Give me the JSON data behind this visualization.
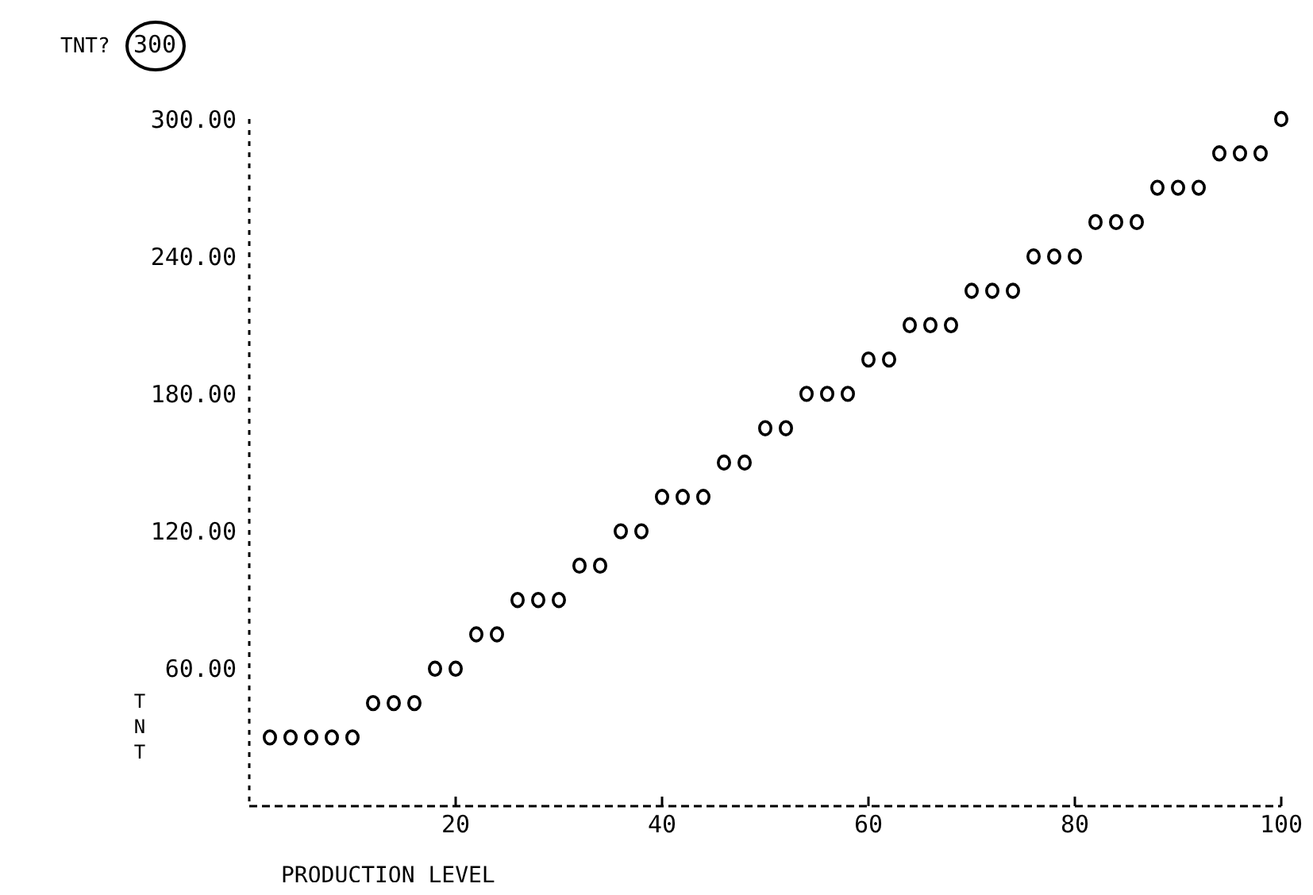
{
  "chart_data": {
    "type": "scatter",
    "xlabel": "PRODUCTION LEVEL",
    "ylabel": "TNT",
    "annotations": [
      "TNT?",
      "300"
    ],
    "x": [
      2,
      4,
      6,
      8,
      10,
      12,
      14,
      16,
      18,
      20,
      22,
      24,
      26,
      28,
      30,
      32,
      34,
      36,
      38,
      40,
      42,
      44,
      46,
      48,
      50,
      52,
      54,
      56,
      58,
      60,
      62,
      64,
      66,
      68,
      70,
      72,
      74,
      76,
      78,
      80,
      82,
      84,
      86,
      88,
      90,
      92,
      94,
      96,
      98,
      100
    ],
    "series": [
      {
        "color": "#000000",
        "values": [
          30,
          30,
          30,
          30,
          30,
          45,
          45,
          45,
          60,
          60,
          75,
          75,
          90,
          90,
          90,
          105,
          105,
          120,
          120,
          135,
          135,
          135,
          150,
          150,
          165,
          165,
          180,
          180,
          180,
          195,
          195,
          210,
          210,
          210,
          225,
          225,
          225,
          240,
          240,
          240,
          255,
          255,
          255,
          270,
          270,
          270,
          285,
          285,
          285,
          300
        ]
      }
    ],
    "xlim": [
      0,
      100
    ],
    "xticks": [
      20,
      40,
      60,
      80,
      100
    ],
    "ylim": [
      0,
      300
    ],
    "yticks": [
      {
        "value": 60,
        "label": "60.00"
      },
      {
        "value": 120,
        "label": "120.00"
      },
      {
        "value": 180,
        "label": "180.00"
      },
      {
        "value": 240,
        "label": "240.00"
      },
      {
        "value": 300,
        "label": "300.00"
      }
    ],
    "marker": "circle",
    "grid": false,
    "legend": false
  }
}
